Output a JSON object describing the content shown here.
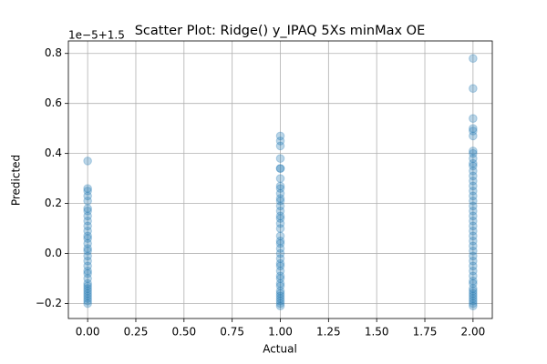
{
  "chart_data": {
    "type": "scatter",
    "title": "Scatter Plot: Ridge() y_IPAQ 5Xs minMax OE",
    "x_label": "Actual",
    "y_label": "Predicted",
    "offset_text": "1e−5+1.5",
    "color": "#1f77b4",
    "alpha": 0.3,
    "grid": true,
    "xlim": [
      -0.1,
      2.1
    ],
    "ylim": [
      -0.26,
      0.85
    ],
    "xticks": [
      {
        "value": 0,
        "label": "0.00"
      },
      {
        "value": 0.25,
        "label": "0.25"
      },
      {
        "value": 0.5,
        "label": "0.50"
      },
      {
        "value": 0.75,
        "label": "0.75"
      },
      {
        "value": 1,
        "label": "1.00"
      },
      {
        "value": 1.25,
        "label": "1.25"
      },
      {
        "value": 1.5,
        "label": "1.50"
      },
      {
        "value": 1.75,
        "label": "1.75"
      },
      {
        "value": 2,
        "label": "2.00"
      }
    ],
    "yticks": [
      {
        "value": -0.2,
        "label": "−0.2"
      },
      {
        "value": 0,
        "label": "0.0"
      },
      {
        "value": 0.2,
        "label": "0.2"
      },
      {
        "value": 0.4,
        "label": "0.4"
      },
      {
        "value": 0.6,
        "label": "0.6"
      },
      {
        "value": 0.8,
        "label": "0.8"
      }
    ],
    "x": [
      0,
      0,
      0,
      0,
      0,
      0,
      0,
      0,
      0,
      0,
      0,
      0,
      0,
      0,
      0,
      0,
      0,
      0,
      0,
      0,
      0,
      0,
      0,
      0,
      0,
      0,
      0,
      0,
      0,
      0,
      0,
      1,
      1,
      1,
      1,
      1,
      1,
      1,
      1,
      1,
      1,
      1,
      1,
      1,
      1,
      1,
      1,
      1,
      1,
      1,
      1,
      1,
      1,
      1,
      1,
      1,
      1,
      1,
      1,
      1,
      1,
      1,
      1,
      1,
      1,
      1,
      1,
      1,
      1,
      2,
      2,
      2,
      2,
      2,
      2,
      2,
      2,
      2,
      2,
      2,
      2,
      2,
      2,
      2,
      2,
      2,
      2,
      2,
      2,
      2,
      2,
      2,
      2,
      2,
      2,
      2,
      2,
      2,
      2,
      2,
      2,
      2,
      2,
      2,
      2,
      2,
      2,
      2,
      2,
      2,
      2,
      2
    ],
    "values": [
      0.37,
      0.26,
      0.25,
      0.23,
      0.21,
      0.18,
      0.17,
      0.15,
      0.13,
      0.11,
      0.09,
      0.07,
      0.06,
      0.04,
      0.02,
      0.01,
      -0.01,
      -0.03,
      -0.05,
      -0.07,
      -0.08,
      -0.1,
      -0.12,
      -0.13,
      -0.14,
      -0.15,
      -0.16,
      -0.17,
      -0.18,
      -0.19,
      -0.2,
      0.47,
      0.45,
      0.43,
      0.38,
      0.34,
      0.34,
      0.3,
      0.27,
      0.26,
      0.24,
      0.22,
      0.21,
      0.19,
      0.17,
      0.15,
      0.14,
      0.12,
      0.1,
      0.07,
      0.05,
      0.04,
      0.02,
      0.0,
      -0.02,
      -0.04,
      -0.05,
      -0.07,
      -0.09,
      -0.1,
      -0.12,
      -0.13,
      -0.15,
      -0.16,
      -0.17,
      -0.18,
      -0.19,
      -0.2,
      -0.21,
      0.78,
      0.66,
      0.54,
      0.5,
      0.49,
      0.47,
      0.41,
      0.4,
      0.38,
      0.36,
      0.35,
      0.33,
      0.31,
      0.29,
      0.27,
      0.25,
      0.23,
      0.21,
      0.19,
      0.17,
      0.15,
      0.13,
      0.11,
      0.09,
      0.07,
      0.05,
      0.03,
      0.01,
      -0.01,
      -0.03,
      -0.05,
      -0.07,
      -0.09,
      -0.11,
      -0.12,
      -0.14,
      -0.15,
      -0.16,
      -0.17,
      -0.18,
      -0.19,
      -0.2,
      -0.21
    ]
  }
}
